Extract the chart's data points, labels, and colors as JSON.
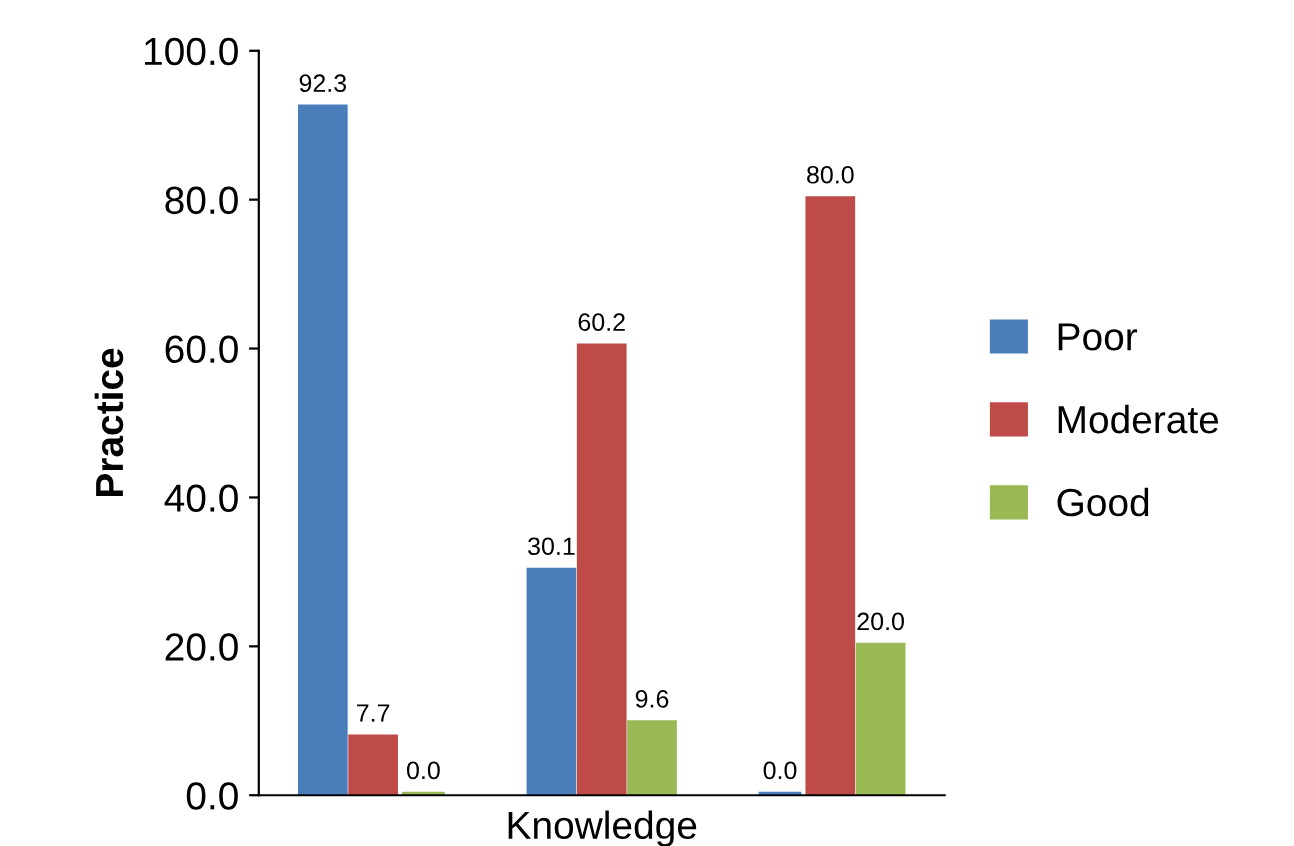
{
  "chart_data": {
    "type": "bar",
    "ylabel": "Practice",
    "xlabel": "Knowledge",
    "categories": [
      null,
      null,
      null
    ],
    "series": [
      {
        "name": "Poor",
        "color": "#4a7ebb",
        "values": [
          92.3,
          30.1,
          0.0
        ],
        "value_labels": [
          "92.3",
          "30.1",
          "0.0"
        ]
      },
      {
        "name": "Moderate",
        "color": "#be4b48",
        "values": [
          7.7,
          60.2,
          80.0
        ],
        "value_labels": [
          "7.7",
          "60.2",
          "80.0"
        ]
      },
      {
        "name": "Good",
        "color": "#98b954",
        "values": [
          0.0,
          9.6,
          20.0
        ],
        "value_labels": [
          "0.0",
          "9.6",
          "20.0"
        ]
      }
    ],
    "ylim": [
      0,
      100
    ],
    "yticks": [
      {
        "value": 0,
        "label": "0.0"
      },
      {
        "value": 20,
        "label": "20.0"
      },
      {
        "value": 40,
        "label": "40.0"
      },
      {
        "value": 60,
        "label": "60.0"
      },
      {
        "value": 80,
        "label": "80.0"
      },
      {
        "value": 100,
        "label": "100.0"
      }
    ],
    "legend": "right",
    "grid": false
  }
}
